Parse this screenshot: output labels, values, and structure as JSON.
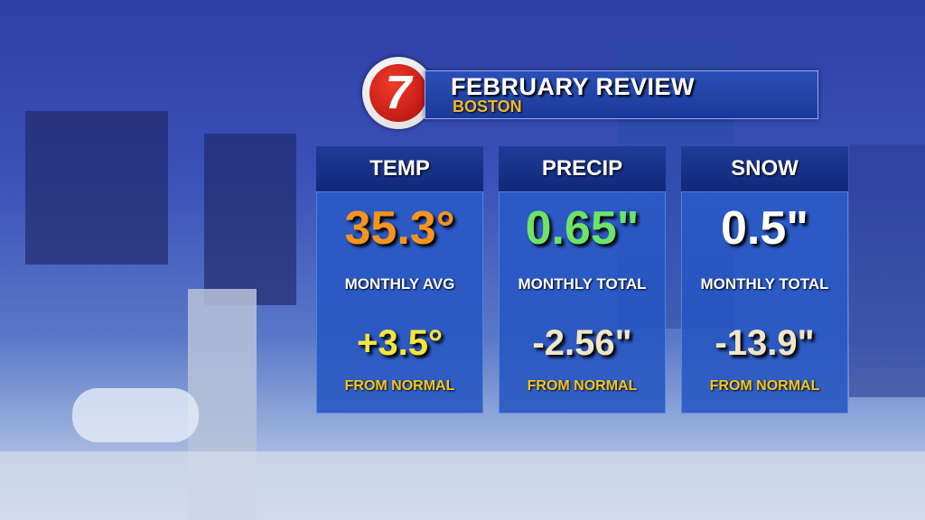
{
  "header": {
    "logo": "7",
    "title": "FEBRUARY REVIEW",
    "subtitle": "BOSTON"
  },
  "panels": [
    {
      "heading": "TEMP",
      "value": "35.3°",
      "value_label": "MONTHLY AVG",
      "change": "+3.5°",
      "change_label": "FROM NORMAL"
    },
    {
      "heading": "PRECIP",
      "value": "0.65\"",
      "value_label": "MONTHLY TOTAL",
      "change": "-2.56\"",
      "change_label": "FROM NORMAL"
    },
    {
      "heading": "SNOW",
      "value": "0.5\"",
      "value_label": "MONTHLY TOTAL",
      "change": "-13.9\"",
      "change_label": "FROM NORMAL"
    }
  ]
}
